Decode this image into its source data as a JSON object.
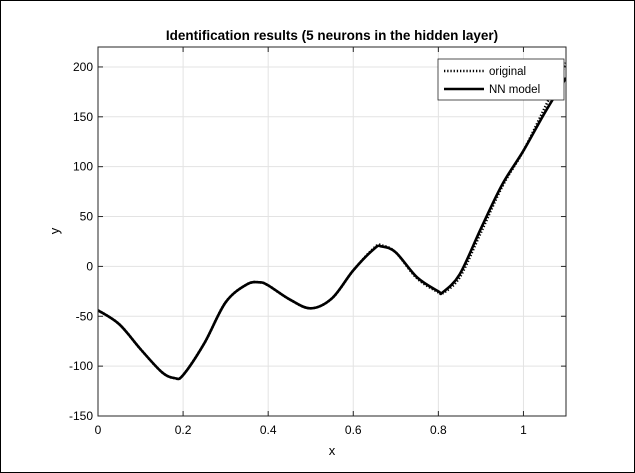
{
  "chart_data": {
    "type": "line",
    "title": "Identification results (5 neurons in the hidden layer)",
    "xlabel": "x",
    "ylabel": "y",
    "xlim": [
      0,
      1.1
    ],
    "ylim": [
      -150,
      220
    ],
    "xticks": [
      0,
      0.2,
      0.4,
      0.6,
      0.8,
      1
    ],
    "xtick_labels": [
      "0",
      "0.2",
      "0.4",
      "0.6",
      "0.8",
      "1"
    ],
    "yticks": [
      -150,
      -100,
      -50,
      0,
      50,
      100,
      150,
      200
    ],
    "ytick_labels": [
      "-150",
      "-100",
      "-50",
      "0",
      "50",
      "100",
      "150",
      "200"
    ],
    "grid": true,
    "legend_position": "top-right",
    "series": [
      {
        "name": "original",
        "style": "dotted",
        "color": "#000000",
        "x": [
          0,
          0.05,
          0.1,
          0.15,
          0.18,
          0.2,
          0.25,
          0.3,
          0.35,
          0.38,
          0.4,
          0.45,
          0.5,
          0.55,
          0.6,
          0.65,
          0.667,
          0.7,
          0.75,
          0.8,
          0.81,
          0.85,
          0.9,
          0.95,
          1.0,
          1.05,
          1.1
        ],
        "y": [
          -44,
          -58,
          -83,
          -106,
          -112,
          -109,
          -77,
          -36,
          -18,
          -16,
          -19,
          -33,
          -42,
          -32,
          -4,
          19,
          21,
          14,
          -12,
          -26,
          -27,
          -11,
          34,
          80,
          116,
          159,
          204
        ]
      },
      {
        "name": "NN model",
        "style": "solid",
        "color": "#000000",
        "x": [
          0,
          0.05,
          0.1,
          0.15,
          0.18,
          0.2,
          0.25,
          0.3,
          0.35,
          0.38,
          0.4,
          0.45,
          0.5,
          0.55,
          0.6,
          0.65,
          0.667,
          0.7,
          0.75,
          0.8,
          0.81,
          0.85,
          0.9,
          0.95,
          1.0,
          1.05,
          1.1
        ],
        "y": [
          -44,
          -58,
          -83,
          -106,
          -112,
          -109,
          -77,
          -36,
          -18,
          -16,
          -19,
          -33,
          -42,
          -32,
          -4,
          18,
          20,
          14,
          -11,
          -25,
          -26,
          -8,
          38,
          82,
          116,
          154,
          189
        ]
      }
    ]
  }
}
